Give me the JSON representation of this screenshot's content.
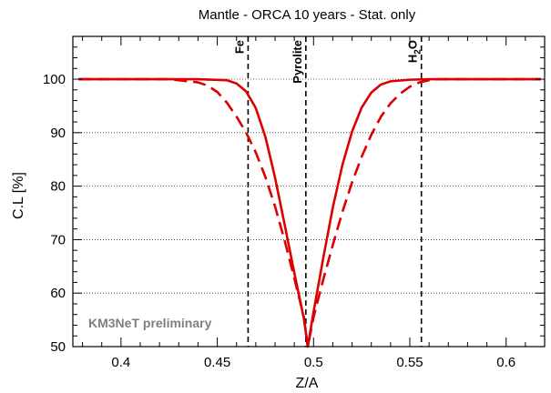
{
  "chart_data": {
    "type": "line",
    "title": "Mantle - ORCA 10 years - Stat. only",
    "xlabel": "Z/A",
    "ylabel": "C.L [%]",
    "xlim": [
      0.375,
      0.62
    ],
    "ylim": [
      50,
      108
    ],
    "xticks": [
      0.4,
      0.45,
      0.5,
      0.55,
      0.6
    ],
    "xtick_labels": [
      "0.4",
      "0.45",
      "0.5",
      "0.55",
      "0.6"
    ],
    "yticks": [
      50,
      60,
      70,
      80,
      90,
      100
    ],
    "ytick_labels": [
      "50",
      "60",
      "70",
      "80",
      "90",
      "100"
    ],
    "grid": "horizontal dotted at y ticks",
    "series": [
      {
        "style": "solid",
        "color": "#dd0000",
        "x": [
          0.378,
          0.44,
          0.455,
          0.46,
          0.465,
          0.47,
          0.475,
          0.48,
          0.485,
          0.49,
          0.495,
          0.497,
          0.5,
          0.505,
          0.51,
          0.515,
          0.52,
          0.525,
          0.53,
          0.535,
          0.54,
          0.55,
          0.56,
          0.618
        ],
        "y": [
          100,
          100,
          99.8,
          99.2,
          97.7,
          94.6,
          89.2,
          81.6,
          72.8,
          63.8,
          55.2,
          50,
          56.5,
          66.5,
          76,
          84,
          90.2,
          94.7,
          97.5,
          99,
          99.6,
          99.9,
          100,
          100
        ]
      },
      {
        "style": "dashed",
        "color": "#dd0000",
        "x": [
          0.378,
          0.425,
          0.44,
          0.445,
          0.45,
          0.455,
          0.46,
          0.465,
          0.47,
          0.475,
          0.48,
          0.485,
          0.49,
          0.495,
          0.497,
          0.5,
          0.505,
          0.51,
          0.515,
          0.52,
          0.525,
          0.53,
          0.535,
          0.54,
          0.545,
          0.55,
          0.555,
          0.56,
          0.565,
          0.58,
          0.618
        ],
        "y": [
          100,
          100,
          99.4,
          98.8,
          97.6,
          95.6,
          93,
          90,
          86.3,
          81.7,
          76.2,
          69.8,
          62.8,
          55.5,
          50,
          55.5,
          62.5,
          69,
          75.2,
          80.7,
          85.5,
          89.6,
          93,
          95.5,
          97.3,
          98.6,
          99.4,
          99.8,
          100,
          100,
          100
        ]
      }
    ],
    "markers": [
      {
        "label": "Fe",
        "x": 0.466
      },
      {
        "label": "Pyrolite",
        "x": 0.496
      },
      {
        "label": "H",
        "sub": "2",
        "label_rest": "O",
        "x": 0.556
      }
    ],
    "annotation": "KM3NeT preliminary"
  }
}
